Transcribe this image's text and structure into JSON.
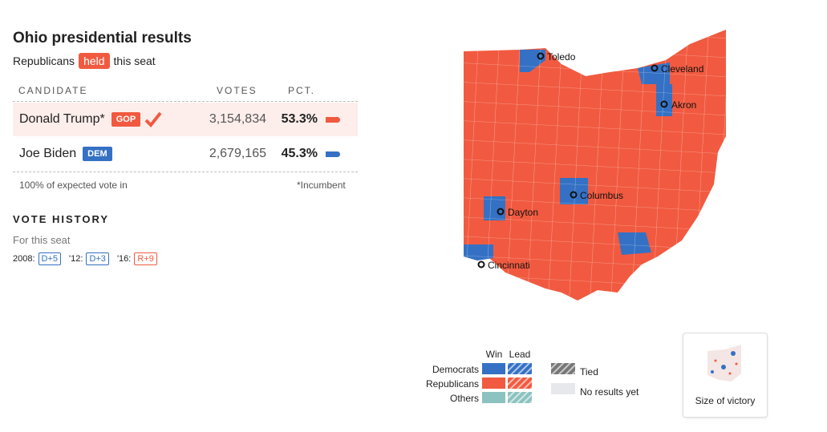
{
  "header": {
    "title": "Ohio presidential results",
    "subtitle_before": "Republicans",
    "status": "held",
    "subtitle_after": "this seat"
  },
  "table": {
    "columns": [
      "CANDIDATE",
      "VOTES",
      "PCT."
    ],
    "rows": [
      {
        "name": "Donald Trump*",
        "party": "GOP",
        "votes": "3,154,834",
        "pct": "53.3%"
      },
      {
        "name": "Joe Biden",
        "party": "DEM",
        "votes": "2,679,165",
        "pct": "45.3%"
      }
    ],
    "footnote_left": "100% of expected vote in",
    "footnote_right": "*Incumbent"
  },
  "vote_history": {
    "title": "VOTE HISTORY",
    "subtitle": "For this seat",
    "entries": [
      {
        "year": "2008:",
        "margin": "D+5"
      },
      {
        "year": "'12:",
        "margin": "D+3"
      },
      {
        "year": "'16:",
        "margin": "R+9"
      }
    ]
  },
  "map": {
    "cities": [
      "Toledo",
      "Cleveland",
      "Akron",
      "Columbus",
      "Dayton",
      "Cincinnati"
    ]
  },
  "legend": {
    "columns": [
      "Win",
      "Lead"
    ],
    "rows": [
      "Democrats",
      "Republicans",
      "Others"
    ],
    "tied": "Tied",
    "no_results": "No results yet"
  },
  "size_button": "Size of victory"
}
